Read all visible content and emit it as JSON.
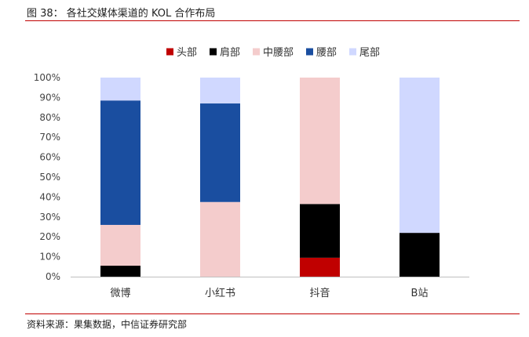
{
  "header": {
    "figure_title": "图 38：  各社交媒体渠道的 KOL 合作布局"
  },
  "footer": {
    "source": "资料来源：果集数据，中信证券研究部"
  },
  "colors": {
    "rule": "#c00000",
    "axis": "#bfbfbf"
  },
  "chart_data": {
    "type": "bar",
    "stacked": true,
    "categories": [
      "微博",
      "小红书",
      "抖音",
      "B站"
    ],
    "series": [
      {
        "name": "头部",
        "color": "#c00000",
        "values": [
          0,
          0,
          9.5,
          0
        ]
      },
      {
        "name": "肩部",
        "color": "#000000",
        "values": [
          5.5,
          0,
          27,
          22
        ]
      },
      {
        "name": "中腰部",
        "color": "#f4cccc",
        "values": [
          20.5,
          37.5,
          63.5,
          0
        ]
      },
      {
        "name": "腰部",
        "color": "#1a4ea0",
        "values": [
          62.5,
          49.5,
          0,
          0
        ]
      },
      {
        "name": "尾部",
        "color": "#d0d8ff",
        "values": [
          11.5,
          13,
          0,
          78
        ]
      }
    ],
    "ylim": [
      0,
      100
    ],
    "yticks": [
      "0%",
      "10%",
      "20%",
      "30%",
      "40%",
      "50%",
      "60%",
      "70%",
      "80%",
      "90%",
      "100%"
    ],
    "legend_position": "top",
    "grid": false,
    "xlabel": "",
    "ylabel": ""
  }
}
